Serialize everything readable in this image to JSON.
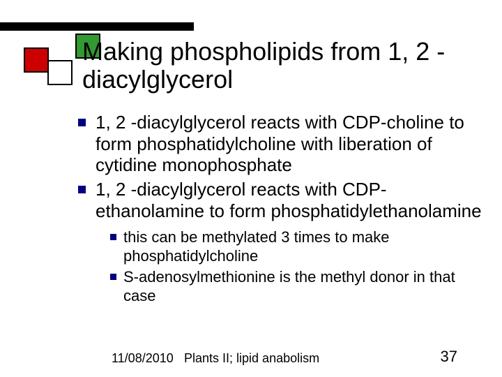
{
  "slide": {
    "title": "Making phospholipids from 1, 2 -diacylglycerol",
    "bullets": [
      {
        "text": "1, 2 -diacylglycerol reacts with CDP-choline to form phosphatidylcholine with liberation of cytidine monophosphate"
      },
      {
        "text": "1, 2 -diacylglycerol reacts with CDP-ethanolamine to form phosphatidylethanolamine",
        "sub": [
          {
            "text": "this can be methylated 3 times to make phosphatidylcholine"
          },
          {
            "text": "S-adenosylmethionine is the methyl donor in that case"
          }
        ]
      }
    ]
  },
  "footer": {
    "date": "11/08/2010",
    "title": "Plants II; lipid anabolism",
    "page": "37"
  },
  "style": {
    "bullet_color": "#000080",
    "deco_colors": {
      "green": "#339933",
      "red": "#cc0000",
      "white": "#ffffff"
    },
    "title_fontsize": 36,
    "body_fontsize_l1": 26,
    "body_fontsize_l2": 22,
    "footer_fontsize": 18,
    "page_fontsize": 22,
    "background": "#ffffff"
  }
}
